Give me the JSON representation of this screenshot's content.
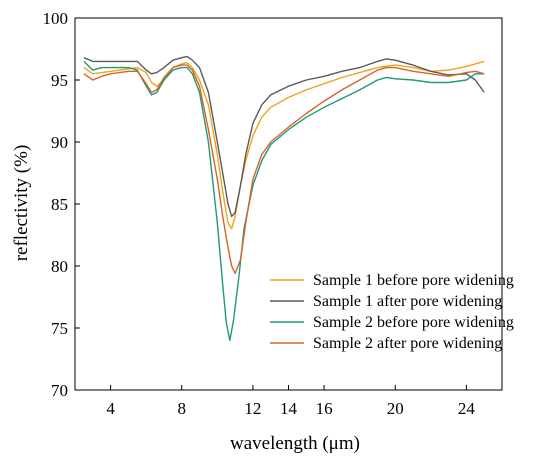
{
  "chart_data": {
    "type": "line",
    "xlabel": "wavelength (μm)",
    "ylabel": "reflectivity (%)",
    "xlim": [
      2.0,
      26.0
    ],
    "ylim": [
      70,
      100
    ],
    "xticks": [
      4,
      8,
      12,
      14,
      16,
      20,
      24
    ],
    "yticks": [
      70,
      75,
      80,
      85,
      90,
      95,
      100
    ],
    "grid": false,
    "legend": "bottom-right",
    "series": [
      {
        "name": "Sample 1 before pore widening",
        "color": "#f2a31a",
        "x": [
          2.5,
          3,
          3.5,
          4,
          4.5,
          5,
          5.5,
          6,
          6.3,
          6.6,
          7,
          7.5,
          8,
          8.3,
          8.6,
          9,
          9.5,
          10,
          10.3,
          10.6,
          10.8,
          11,
          11.3,
          11.6,
          12,
          12.5,
          13,
          14,
          15,
          16,
          17,
          18,
          19,
          20,
          21,
          22,
          23,
          24,
          25
        ],
        "y": [
          96.0,
          95.5,
          95.6,
          95.7,
          95.8,
          95.9,
          96.0,
          95.6,
          94.8,
          94.5,
          95.0,
          96.0,
          96.3,
          96.4,
          96.0,
          95.0,
          93.0,
          89.0,
          86.0,
          83.5,
          83.0,
          84.0,
          86.5,
          88.5,
          90.5,
          92.0,
          92.8,
          93.6,
          94.2,
          94.7,
          95.2,
          95.6,
          96.0,
          96.2,
          96.0,
          95.7,
          95.8,
          96.1,
          96.5
        ]
      },
      {
        "name": "Sample 1 after pore widening",
        "color": "#5a5a5a",
        "x": [
          2.5,
          3,
          3.5,
          4,
          4.5,
          5,
          5.5,
          6,
          6.3,
          6.6,
          7,
          7.5,
          8,
          8.3,
          8.6,
          9,
          9.5,
          10,
          10.3,
          10.6,
          10.8,
          11,
          11.3,
          11.6,
          12,
          12.5,
          13,
          14,
          15,
          16,
          17,
          18,
          19,
          19.5,
          20,
          21,
          22,
          23,
          24,
          24.5,
          25
        ],
        "y": [
          96.8,
          96.5,
          96.5,
          96.5,
          96.5,
          96.5,
          96.5,
          95.8,
          95.5,
          95.6,
          96.0,
          96.6,
          96.8,
          96.9,
          96.6,
          96.0,
          94.0,
          90.0,
          87.5,
          85.0,
          84.0,
          84.3,
          86.5,
          89.0,
          91.5,
          93.0,
          93.8,
          94.5,
          95.0,
          95.3,
          95.7,
          96.0,
          96.5,
          96.7,
          96.6,
          96.2,
          95.7,
          95.4,
          95.5,
          95.0,
          94.0
        ]
      },
      {
        "name": "Sample 2 before pore widening",
        "color": "#1f9a7a",
        "x": [
          2.5,
          3,
          3.5,
          4,
          4.5,
          5,
          5.5,
          6,
          6.3,
          6.6,
          7,
          7.5,
          8,
          8.3,
          8.6,
          9,
          9.5,
          10,
          10.3,
          10.5,
          10.7,
          10.9,
          11.2,
          11.5,
          12,
          12.5,
          13,
          14,
          15,
          16,
          17,
          18,
          19,
          19.5,
          20,
          21,
          22,
          23,
          24,
          24.5,
          25
        ],
        "y": [
          96.5,
          95.8,
          96.0,
          96.0,
          96.0,
          96.0,
          95.8,
          94.5,
          93.8,
          94.0,
          95.0,
          95.8,
          96.0,
          96.0,
          95.5,
          94.0,
          90.0,
          83.5,
          78.5,
          75.5,
          74.0,
          75.5,
          79.0,
          83.0,
          86.5,
          88.5,
          89.8,
          91.0,
          92.0,
          92.8,
          93.5,
          94.2,
          95.0,
          95.2,
          95.1,
          95.0,
          94.8,
          94.8,
          95.0,
          95.5,
          95.5
        ]
      },
      {
        "name": "Sample 2 after pore widening",
        "color": "#d9632b",
        "x": [
          2.5,
          3,
          3.5,
          4,
          4.5,
          5,
          5.5,
          6,
          6.3,
          6.6,
          7,
          7.5,
          8,
          8.3,
          8.6,
          9,
          9.5,
          10,
          10.3,
          10.6,
          10.8,
          11,
          11.3,
          11.6,
          12,
          12.5,
          13,
          14,
          15,
          16,
          17,
          18,
          19,
          19.5,
          20,
          21,
          22,
          23,
          24,
          24.5,
          25
        ],
        "y": [
          95.5,
          95.0,
          95.3,
          95.5,
          95.6,
          95.7,
          95.7,
          94.7,
          94.0,
          94.2,
          95.2,
          96.0,
          96.2,
          96.2,
          95.8,
          94.5,
          91.0,
          87.0,
          84.0,
          81.5,
          80.0,
          79.4,
          80.5,
          83.5,
          87.0,
          89.0,
          90.0,
          91.2,
          92.3,
          93.3,
          94.2,
          95.0,
          95.8,
          96.0,
          96.0,
          95.7,
          95.5,
          95.3,
          95.6,
          95.7,
          95.5
        ]
      }
    ]
  }
}
